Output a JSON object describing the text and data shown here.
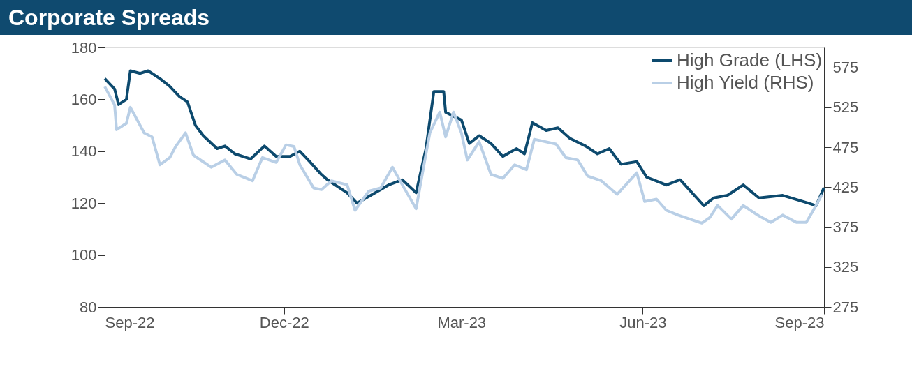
{
  "chart_data": {
    "type": "line",
    "title": "Corporate Spreads",
    "xlim": [
      "2022-09-01",
      "2023-09-01"
    ],
    "xticks": [
      {
        "value": "2022-09-01",
        "label": "Sep-22"
      },
      {
        "value": "2022-12-01",
        "label": "Dec-22"
      },
      {
        "value": "2023-03-01",
        "label": "Mar-23"
      },
      {
        "value": "2023-06-01",
        "label": "Jun-23"
      },
      {
        "value": "2023-09-01",
        "label": "Sep-23"
      }
    ],
    "ylim": [
      80,
      180
    ],
    "yticks": [
      80,
      100,
      120,
      140,
      160,
      180
    ],
    "y2lim": [
      275,
      600
    ],
    "y2ticks": [
      275,
      325,
      375,
      425,
      475,
      525,
      575
    ],
    "legend": "top right",
    "grid": false,
    "line_style": "solid",
    "series": [
      {
        "name": "High Grade (LHS)",
        "color": "#0d4a6e",
        "axis": "y",
        "x": [
          "2022-09-01",
          "2022-09-06",
          "2022-09-08",
          "2022-09-12",
          "2022-09-14",
          "2022-09-19",
          "2022-09-23",
          "2022-09-29",
          "2022-10-04",
          "2022-10-09",
          "2022-10-13",
          "2022-10-17",
          "2022-10-21",
          "2022-10-28",
          "2022-11-01",
          "2022-11-06",
          "2022-11-14",
          "2022-11-21",
          "2022-11-27",
          "2022-12-04",
          "2022-12-09",
          "2022-12-14",
          "2022-12-20",
          "2022-12-23",
          "2023-01-02",
          "2023-01-07",
          "2023-01-14",
          "2023-01-23",
          "2023-01-30",
          "2023-02-06",
          "2023-02-11",
          "2023-02-15",
          "2023-02-20",
          "2023-02-21",
          "2023-03-01",
          "2023-03-05",
          "2023-03-10",
          "2023-03-16",
          "2023-03-22",
          "2023-03-29",
          "2023-04-02",
          "2023-04-06",
          "2023-04-13",
          "2023-04-19",
          "2023-04-25",
          "2023-05-03",
          "2023-05-09",
          "2023-05-15",
          "2023-05-21",
          "2023-05-29",
          "2023-06-03",
          "2023-06-13",
          "2023-06-20",
          "2023-07-02",
          "2023-07-07",
          "2023-07-14",
          "2023-07-22",
          "2023-07-30",
          "2023-08-11",
          "2023-08-24",
          "2023-08-28",
          "2023-09-01"
        ],
        "values": [
          168,
          164,
          158,
          160,
          171,
          170,
          171,
          168,
          165,
          161,
          159,
          150,
          146,
          141,
          142,
          139,
          137,
          142,
          138,
          138,
          140,
          136,
          131,
          129,
          124,
          120,
          123,
          127,
          129,
          124,
          141,
          163,
          163,
          155,
          152,
          143,
          146,
          143,
          138,
          141,
          139,
          151,
          148,
          149,
          145,
          142,
          139,
          141,
          135,
          136,
          130,
          127,
          129,
          119,
          122,
          123,
          127,
          122,
          123,
          120,
          119,
          126
        ]
      },
      {
        "name": "High Yield (RHS)",
        "color": "#b9cfe6",
        "axis": "y2",
        "x": [
          "2022-09-01",
          "2022-09-06",
          "2022-09-07",
          "2022-09-12",
          "2022-09-14",
          "2022-09-21",
          "2022-09-25",
          "2022-09-29",
          "2022-10-04",
          "2022-10-07",
          "2022-10-12",
          "2022-10-16",
          "2022-10-25",
          "2022-11-01",
          "2022-11-07",
          "2022-11-15",
          "2022-11-20",
          "2022-11-27",
          "2022-12-02",
          "2022-12-06",
          "2022-12-09",
          "2022-12-16",
          "2022-12-20",
          "2022-12-25",
          "2023-01-02",
          "2023-01-06",
          "2023-01-13",
          "2023-01-19",
          "2023-01-25",
          "2023-01-30",
          "2023-02-06",
          "2023-02-10",
          "2023-02-13",
          "2023-02-18",
          "2023-02-21",
          "2023-02-25",
          "2023-03-01",
          "2023-03-04",
          "2023-03-10",
          "2023-03-16",
          "2023-03-22",
          "2023-03-28",
          "2023-04-03",
          "2023-04-07",
          "2023-04-18",
          "2023-04-23",
          "2023-04-29",
          "2023-05-04",
          "2023-05-11",
          "2023-05-19",
          "2023-05-29",
          "2023-06-02",
          "2023-06-08",
          "2023-06-13",
          "2023-06-19",
          "2023-07-01",
          "2023-07-05",
          "2023-07-09",
          "2023-07-16",
          "2023-07-22",
          "2023-07-30",
          "2023-08-05",
          "2023-08-11",
          "2023-08-18",
          "2023-08-23",
          "2023-08-27",
          "2023-08-31"
        ],
        "values": [
          551,
          528,
          497,
          505,
          525,
          493,
          488,
          453,
          462,
          476,
          493,
          465,
          450,
          459,
          441,
          433,
          462,
          456,
          478,
          476,
          453,
          424,
          422,
          433,
          428,
          396,
          420,
          424,
          450,
          428,
          398,
          453,
          493,
          519,
          488,
          519,
          493,
          459,
          482,
          441,
          436,
          453,
          447,
          485,
          479,
          462,
          459,
          439,
          433,
          416,
          443,
          407,
          410,
          396,
          390,
          380,
          387,
          402,
          385,
          402,
          389,
          381,
          390,
          381,
          381,
          398,
          416
        ]
      }
    ]
  }
}
